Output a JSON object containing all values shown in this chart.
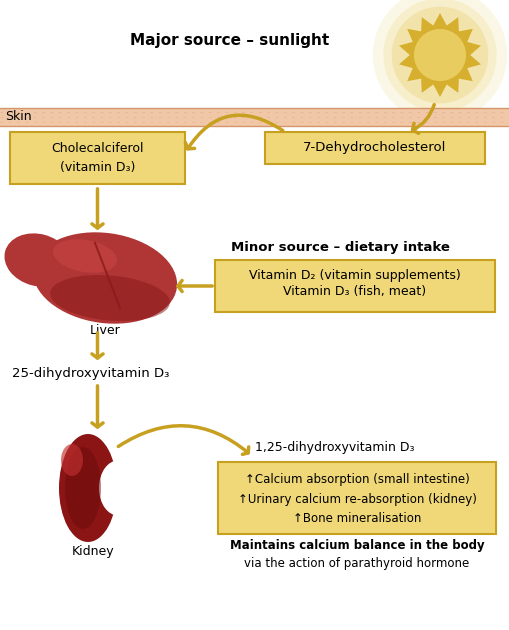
{
  "bg_color": "#ffffff",
  "skin_color": "#f0c8a8",
  "skin_line_color": "#d4956a",
  "box_fill": "#f0d878",
  "box_edge": "#c8a020",
  "arrow_color": "#c8a020",
  "sun_color_outer": "#d4aa20",
  "sun_color_inner": "#e8cc60",
  "liver_dark": "#8b1a1a",
  "liver_mid": "#b03535",
  "liver_light": "#c84545",
  "kidney_dark": "#6b0a0a",
  "kidney_mid": "#8b1515",
  "kidney_light": "#c03030",
  "title_text": "Major source – sunlight",
  "minor_source_title": "Minor source – dietary intake",
  "box1_text": "Cholecalciferol\n(vitamin D₃)",
  "box2_text": "7-Dehydrocholesterol",
  "box3_line1": "Vitamin D₃ (fish, meat)",
  "box3_line2": "Vitamin D₂ (vitamin supplements)",
  "label_25": "25-dihydroxyvitamin D₃",
  "label_125": "1,25-dihydroxyvitamin D₃",
  "eff_line1": "↑Calcium absorption (small intestine)",
  "eff_line2": "↑Urinary calcium re-absorption (kidney)",
  "eff_line3": "↑Bone mineralisation",
  "maintains_bold": "Maintains calcium balance in the body",
  "maintains_normal": "via the action of parathyroid hormone",
  "skin_label": "Skin",
  "liver_label": "Liver",
  "kidney_label": "Kidney",
  "fig_w": 5.1,
  "fig_h": 6.3,
  "dpi": 100
}
